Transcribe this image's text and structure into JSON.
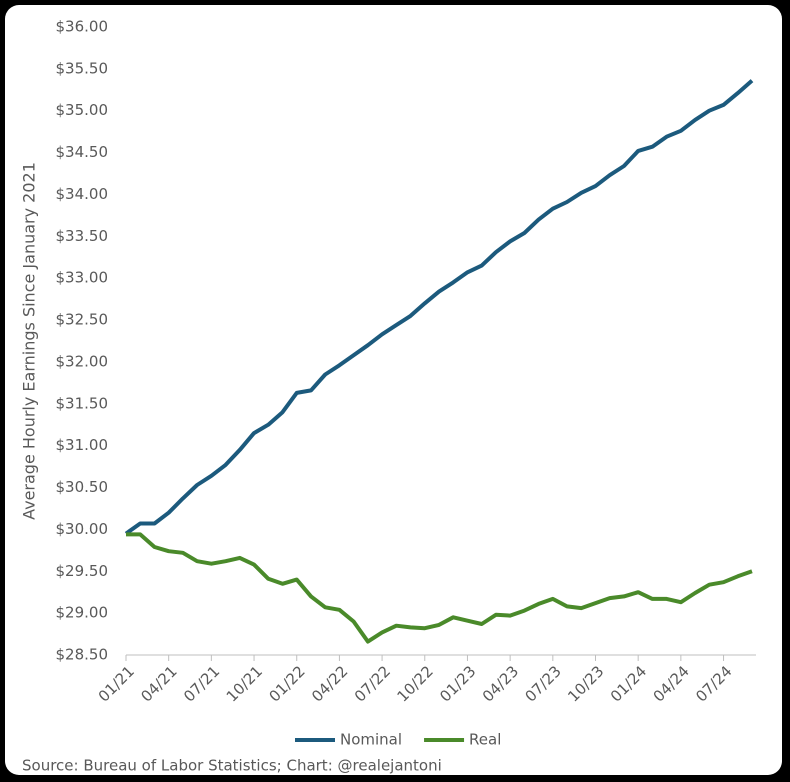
{
  "chart_data": {
    "type": "line",
    "y_label": "Average Hourly Earnings Since January 2021",
    "source": "Source: Bureau of Labor Statistics; Chart: @realejantoni",
    "categories": [
      "01/21",
      null,
      null,
      "04/21",
      null,
      null,
      "07/21",
      null,
      null,
      "10/21",
      null,
      null,
      "01/22",
      null,
      null,
      "04/22",
      null,
      null,
      "07/22",
      null,
      null,
      "10/22",
      null,
      null,
      "01/23",
      null,
      null,
      "04/23",
      null,
      null,
      "07/23",
      null,
      null,
      "10/23",
      null,
      null,
      "01/24",
      null,
      null,
      "04/24",
      null,
      null,
      "07/24",
      null,
      null
    ],
    "series": [
      {
        "name": "Nominal",
        "color": "#1c5a7d",
        "values": [
          29.95,
          30.07,
          30.07,
          30.2,
          30.37,
          30.53,
          30.64,
          30.77,
          30.95,
          31.15,
          31.25,
          31.4,
          31.63,
          31.66,
          31.85,
          31.96,
          32.08,
          32.2,
          32.33,
          32.44,
          32.55,
          32.7,
          32.84,
          32.95,
          33.07,
          33.15,
          33.31,
          33.44,
          33.54,
          33.7,
          33.83,
          33.91,
          34.02,
          34.1,
          34.23,
          34.34,
          34.52,
          34.57,
          34.69,
          34.76,
          34.89,
          35.0,
          35.07,
          35.21,
          35.36
        ]
      },
      {
        "name": "Real",
        "color": "#4a8a2a",
        "values": [
          29.94,
          29.94,
          29.79,
          29.74,
          29.72,
          29.62,
          29.59,
          29.62,
          29.66,
          29.58,
          29.41,
          29.35,
          29.4,
          29.2,
          29.07,
          29.04,
          28.9,
          28.66,
          28.77,
          28.85,
          28.83,
          28.82,
          28.86,
          28.95,
          28.91,
          28.87,
          28.98,
          28.97,
          29.03,
          29.11,
          29.17,
          29.08,
          29.06,
          29.12,
          29.18,
          29.2,
          29.25,
          29.17,
          29.17,
          29.13,
          29.24,
          29.34,
          29.37,
          29.44,
          29.5
        ]
      }
    ],
    "ylim": [
      28.5,
      36
    ],
    "yticks": [
      {
        "value": 28.5,
        "label": "$28.50"
      },
      {
        "value": 29,
        "label": "$29.00"
      },
      {
        "value": 29.5,
        "label": "$29.50"
      },
      {
        "value": 30,
        "label": "$30.00"
      },
      {
        "value": 30.5,
        "label": "$30.50"
      },
      {
        "value": 31,
        "label": "$31.00"
      },
      {
        "value": 31.5,
        "label": "$31.50"
      },
      {
        "value": 32,
        "label": "$32.00"
      },
      {
        "value": 32.5,
        "label": "$32.50"
      },
      {
        "value": 33,
        "label": "$33.00"
      },
      {
        "value": 33.5,
        "label": "$33.50"
      },
      {
        "value": 34,
        "label": "$34.00"
      },
      {
        "value": 34.5,
        "label": "$34.50"
      },
      {
        "value": 35,
        "label": "$35.00"
      },
      {
        "value": 35.5,
        "label": "$35.50"
      },
      {
        "value": 36,
        "label": "$36.00"
      }
    ],
    "grid": false,
    "legend": "bottom"
  }
}
